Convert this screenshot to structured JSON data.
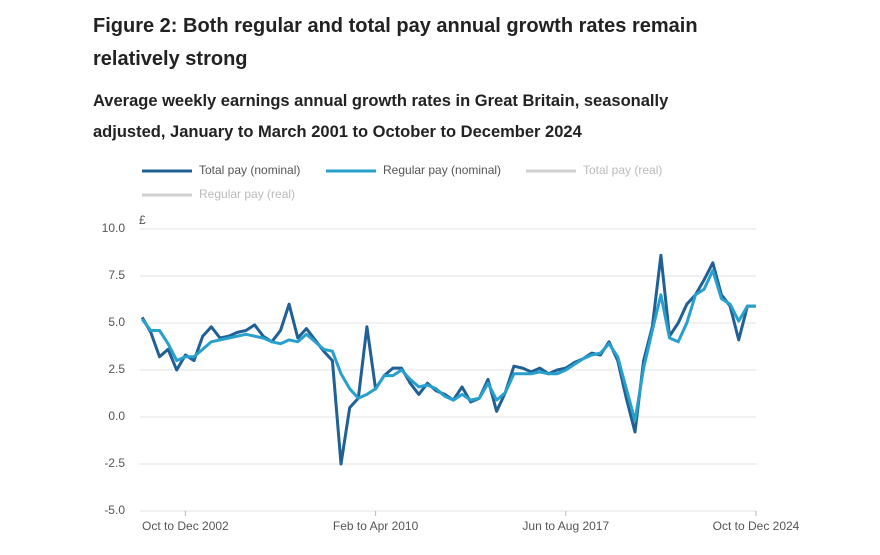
{
  "chart_data": {
    "type": "line",
    "title": "Figure 2: Both regular and total pay annual growth rates remain relatively strong",
    "subtitle": "Average weekly earnings annual growth rates in Great Britain, seasonally adjusted, January to March 2001 to October to December 2024",
    "y_unit": "£",
    "categories": [
      null,
      null,
      null,
      null,
      null,
      "Oct to Dec 2002",
      null,
      null,
      null,
      null,
      null,
      null,
      null,
      null,
      null,
      null,
      null,
      null,
      null,
      null,
      null,
      null,
      null,
      null,
      null,
      null,
      null,
      "Feb to Apr 2010",
      null,
      null,
      null,
      null,
      null,
      null,
      null,
      null,
      null,
      null,
      null,
      null,
      null,
      null,
      null,
      null,
      null,
      null,
      null,
      null,
      null,
      "Jun to Aug 2017",
      null,
      null,
      null,
      null,
      null,
      null,
      null,
      null,
      null,
      null,
      null,
      null,
      null,
      null,
      null,
      null,
      null,
      null,
      null,
      null,
      null,
      "Oct to Dec 2024"
    ],
    "series": [
      {
        "name": "Total pay (nominal)",
        "color": "#206095",
        "values": [
          5.3,
          4.5,
          3.2,
          3.6,
          2.5,
          3.3,
          3.0,
          4.3,
          4.8,
          4.2,
          4.3,
          4.5,
          4.6,
          4.9,
          4.3,
          4.0,
          4.6,
          6.0,
          4.2,
          4.7,
          4.1,
          3.5,
          3.0,
          -2.5,
          0.5,
          1.0,
          4.8,
          1.5,
          2.2,
          2.6,
          2.6,
          1.8,
          1.2,
          1.8,
          1.4,
          1.2,
          0.9,
          1.6,
          0.8,
          1.0,
          2.0,
          0.3,
          1.3,
          2.7,
          2.6,
          2.4,
          2.6,
          2.3,
          2.5,
          2.6,
          2.9,
          3.1,
          3.4,
          3.3,
          4.0,
          3.0,
          1.0,
          -0.8,
          3.0,
          4.8,
          8.6,
          4.3,
          5.0,
          6.0,
          6.5,
          7.3,
          8.2,
          6.5,
          5.9,
          4.1,
          5.9,
          5.9
        ]
      },
      {
        "name": "Regular pay (nominal)",
        "color": "#27a0cc",
        "values": [
          5.2,
          4.6,
          4.6,
          3.9,
          3.0,
          3.2,
          3.2,
          3.6,
          4.0,
          4.1,
          4.2,
          4.3,
          4.4,
          4.3,
          4.2,
          4.0,
          3.9,
          4.1,
          4.0,
          4.4,
          4.0,
          3.6,
          3.5,
          2.3,
          1.5,
          1.0,
          1.2,
          1.5,
          2.2,
          2.2,
          2.5,
          2.0,
          1.6,
          1.7,
          1.5,
          1.1,
          0.9,
          1.2,
          0.9,
          1.0,
          1.8,
          0.9,
          1.3,
          2.3,
          2.3,
          2.3,
          2.4,
          2.3,
          2.3,
          2.5,
          2.8,
          3.1,
          3.3,
          3.4,
          3.9,
          3.2,
          1.5,
          -0.2,
          2.6,
          4.6,
          6.5,
          4.2,
          4.0,
          5.0,
          6.5,
          6.8,
          7.8,
          6.3,
          6.0,
          5.1,
          5.9,
          5.9
        ]
      }
    ],
    "inactive_legend": [
      {
        "name": "Total pay (real)",
        "color": "#cfcfcf"
      },
      {
        "name": "Regular pay (real)",
        "color": "#cfcfcf"
      }
    ],
    "ylim": [
      -5,
      10
    ],
    "yticks": [
      {
        "value": 10,
        "label": "10.0"
      },
      7.5,
      {
        "value": 5,
        "label": "5.0"
      },
      2.5,
      {
        "value": 0,
        "label": "0.0"
      },
      -2.5,
      {
        "value": -5,
        "label": "-5.0"
      }
    ],
    "grid": true
  }
}
